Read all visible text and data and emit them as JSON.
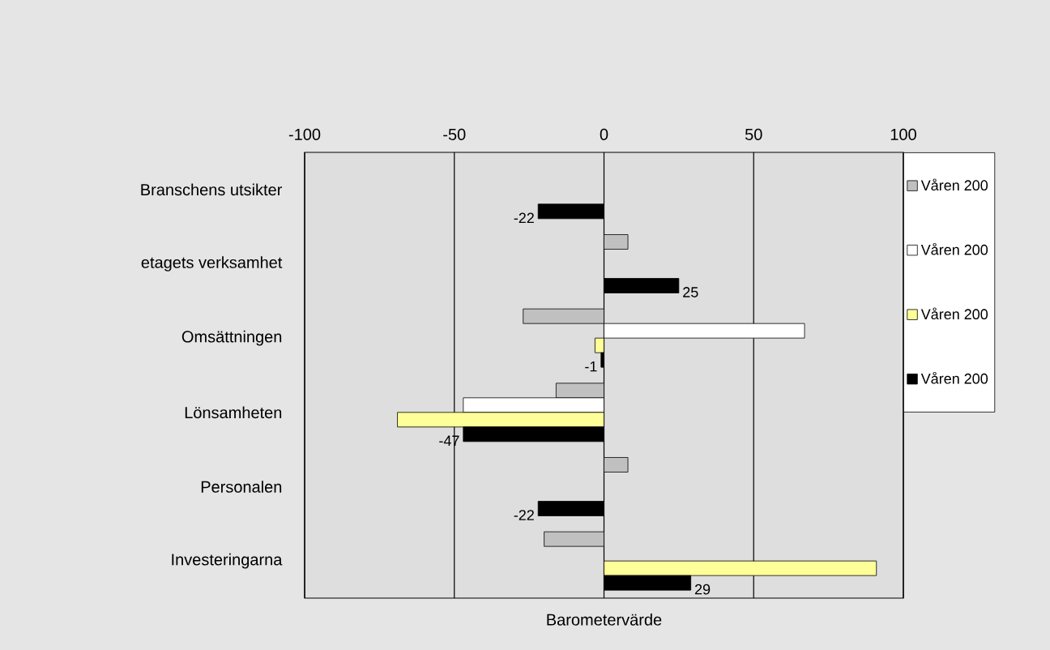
{
  "chart_data": {
    "type": "bar",
    "orientation": "horizontal",
    "xlabel": "Barometervärde",
    "categories": [
      "Branschens utsikter",
      "etagets verksamhet",
      "Omsättningen",
      "Lönsamheten",
      "Personalen",
      "Investeringarna"
    ],
    "series": [
      {
        "name": "Våren 200",
        "color": "#c0c0c0",
        "values": [
          null,
          8,
          -27,
          -16,
          8,
          -20
        ]
      },
      {
        "name": "Våren 200",
        "color": "#ffffff",
        "values": [
          null,
          null,
          67,
          -47,
          null,
          null
        ]
      },
      {
        "name": "Våren 200",
        "color": "#ffff99",
        "values": [
          null,
          null,
          -3,
          -69,
          null,
          91
        ]
      },
      {
        "name": "Våren 200",
        "color": "#000000",
        "values": [
          -22,
          25,
          -1,
          -47,
          -22,
          29
        ],
        "value_labels": [
          "-22",
          "25",
          "-1",
          "-47",
          "-22",
          "29"
        ]
      }
    ],
    "xlim": [
      -100,
      100
    ],
    "xticks": [
      -100,
      -50,
      0,
      50,
      100
    ],
    "grid": "x",
    "legend": "right"
  }
}
